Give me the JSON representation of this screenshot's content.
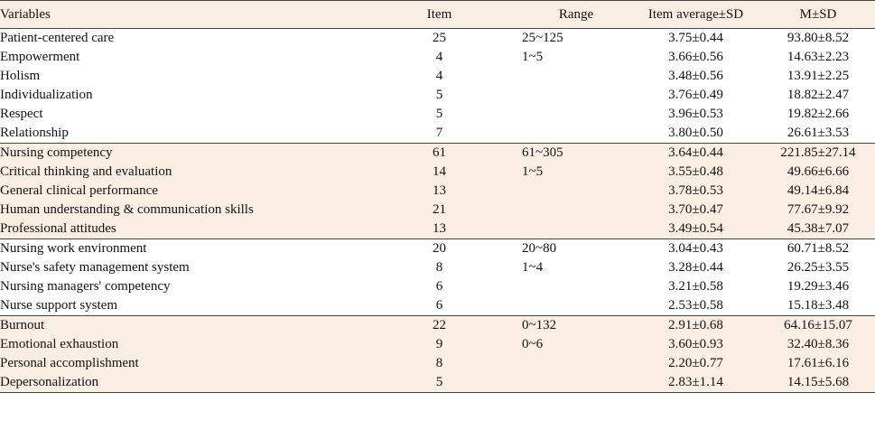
{
  "headers": {
    "variables": "Variables",
    "item": "Item",
    "range": "Range",
    "item_avg": "Item average±SD",
    "msd": "M±SD"
  },
  "groups": [
    {
      "name": "Patient-centered care",
      "item": "25",
      "range": "25~125",
      "avg": "3.75±0.44",
      "msd": "93.80±8.52",
      "rows": [
        {
          "name": "Empowerment",
          "item": "4",
          "range": "1~5",
          "avg": "3.66±0.56",
          "msd": "14.63±2.23"
        },
        {
          "name": "Holism",
          "item": "4",
          "range": "",
          "avg": "3.48±0.56",
          "msd": "13.91±2.25"
        },
        {
          "name": "Individualization",
          "item": "5",
          "range": "",
          "avg": "3.76±0.49",
          "msd": "18.82±2.47"
        },
        {
          "name": "Respect",
          "item": "5",
          "range": "",
          "avg": "3.96±0.53",
          "msd": "19.82±2.66"
        },
        {
          "name": "Relationship",
          "item": "7",
          "range": "",
          "avg": "3.80±0.50",
          "msd": "26.61±3.53"
        }
      ]
    },
    {
      "name": "Nursing competency",
      "item": "61",
      "range": "61~305",
      "avg": "3.64±0.44",
      "msd": "221.85±27.14",
      "rows": [
        {
          "name": "Critical thinking and evaluation",
          "item": "14",
          "range": "1~5",
          "avg": "3.55±0.48",
          "msd": "49.66±6.66"
        },
        {
          "name": "General clinical performance",
          "item": "13",
          "range": "",
          "avg": "3.78±0.53",
          "msd": "49.14±6.84"
        },
        {
          "name": "Human understanding & communication skills",
          "item": "21",
          "range": "",
          "avg": "3.70±0.47",
          "msd": "77.67±9.92"
        },
        {
          "name": "Professional attitudes",
          "item": "13",
          "range": "",
          "avg": "3.49±0.54",
          "msd": "45.38±7.07"
        }
      ]
    },
    {
      "name": "Nursing work environment",
      "item": "20",
      "range": "20~80",
      "avg": "3.04±0.43",
      "msd": "60.71±8.52",
      "rows": [
        {
          "name": "Nurse's safety management system",
          "item": "8",
          "range": "1~4",
          "avg": "3.28±0.44",
          "msd": "26.25±3.55"
        },
        {
          "name": "Nursing managers' competency",
          "item": "6",
          "range": "",
          "avg": "3.21±0.58",
          "msd": "19.29±3.46"
        },
        {
          "name": "Nurse support system",
          "item": "6",
          "range": "",
          "avg": "2.53±0.58",
          "msd": "15.18±3.48"
        }
      ]
    },
    {
      "name": "Burnout",
      "item": "22",
      "range": "0~132",
      "avg": "2.91±0.68",
      "msd": "64.16±15.07",
      "rows": [
        {
          "name": "Emotional exhaustion",
          "item": "9",
          "range": "0~6",
          "avg": "3.60±0.93",
          "msd": "32.40±8.36"
        },
        {
          "name": "Personal accomplishment",
          "item": "8",
          "range": "",
          "avg": "2.20±0.77",
          "msd": "17.61±6.16"
        },
        {
          "name": "Depersonalization",
          "item": "5",
          "range": "",
          "avg": "2.83±1.14",
          "msd": "14.15±5.68"
        }
      ]
    }
  ]
}
